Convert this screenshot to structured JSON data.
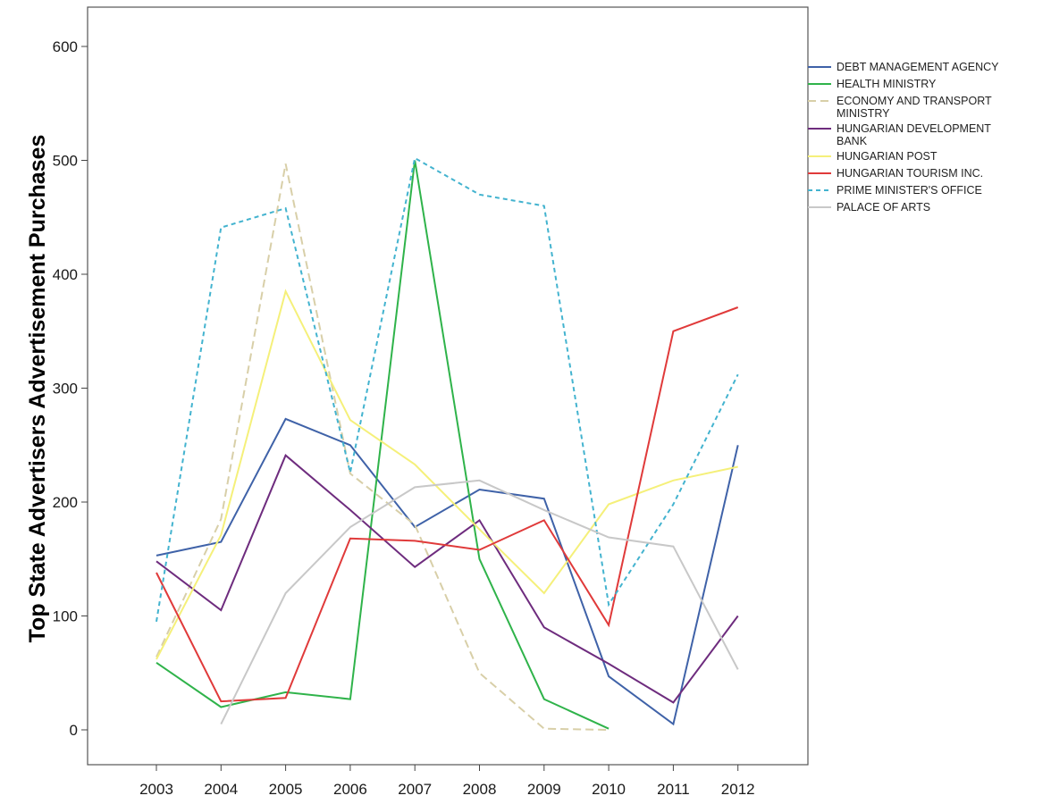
{
  "chart_data": {
    "type": "line",
    "title": "",
    "xlabel": "",
    "ylabel": "Top State Advertisers Advertisement Purchases",
    "categories": [
      "2003",
      "2004",
      "2005",
      "2006",
      "2007",
      "2008",
      "2009",
      "2010",
      "2011",
      "2012"
    ],
    "ylim": [
      -30,
      630
    ],
    "yticks": [
      0,
      100,
      200,
      300,
      400,
      500,
      600
    ],
    "grid": false,
    "legend_position": "right",
    "series": [
      {
        "name": "DEBT MANAGEMENT AGENCY",
        "color": "#3f62a8",
        "dash": "solid",
        "label_lines": [
          "DEBT MANAGEMENT AGENCY"
        ],
        "values": [
          153,
          165,
          273,
          250,
          178,
          211,
          203,
          47,
          5,
          250
        ]
      },
      {
        "name": "HEALTH MINISTRY",
        "color": "#2fb34a",
        "dash": "solid",
        "label_lines": [
          "HEALTH MINISTRY"
        ],
        "values": [
          59,
          20,
          33,
          27,
          500,
          150,
          27,
          1,
          null,
          null
        ]
      },
      {
        "name": "ECONOMY AND TRANSPORT MINISTRY",
        "color": "#d8cfa8",
        "dash": "dashed",
        "label_lines": [
          "ECONOMY AND TRANSPORT",
          "MINISTRY"
        ],
        "values": [
          64,
          185,
          497,
          225,
          180,
          50,
          1,
          0,
          null,
          null
        ]
      },
      {
        "name": "HUNGARIAN DEVELOPMENT BANK",
        "color": "#6e2c7e",
        "dash": "solid",
        "label_lines": [
          "HUNGARIAN DEVELOPMENT",
          "BANK"
        ],
        "values": [
          148,
          105,
          241,
          193,
          143,
          184,
          90,
          58,
          24,
          100
        ]
      },
      {
        "name": "HUNGARIAN POST",
        "color": "#f5f07a",
        "dash": "solid",
        "label_lines": [
          "HUNGARIAN POST"
        ],
        "values": [
          62,
          171,
          385,
          272,
          233,
          176,
          120,
          198,
          219,
          231
        ]
      },
      {
        "name": "HUNGARIAN TOURISM INC.",
        "color": "#e03a3a",
        "dash": "solid",
        "label_lines": [
          "HUNGARIAN TOURISM INC."
        ],
        "values": [
          138,
          25,
          28,
          168,
          166,
          158,
          184,
          92,
          350,
          371
        ]
      },
      {
        "name": "PRIME MINISTER'S OFFICE",
        "color": "#43b3cf",
        "dash": "dotted",
        "label_lines": [
          "PRIME MINISTER'S OFFICE"
        ],
        "values": [
          95,
          441,
          458,
          226,
          502,
          470,
          460,
          110,
          198,
          312
        ]
      },
      {
        "name": "PALACE OF ARTS",
        "color": "#c8c8c8",
        "dash": "solid",
        "label_lines": [
          "PALACE OF ARTS"
        ],
        "values": [
          null,
          5,
          120,
          178,
          213,
          219,
          193,
          169,
          161,
          53
        ]
      }
    ]
  }
}
